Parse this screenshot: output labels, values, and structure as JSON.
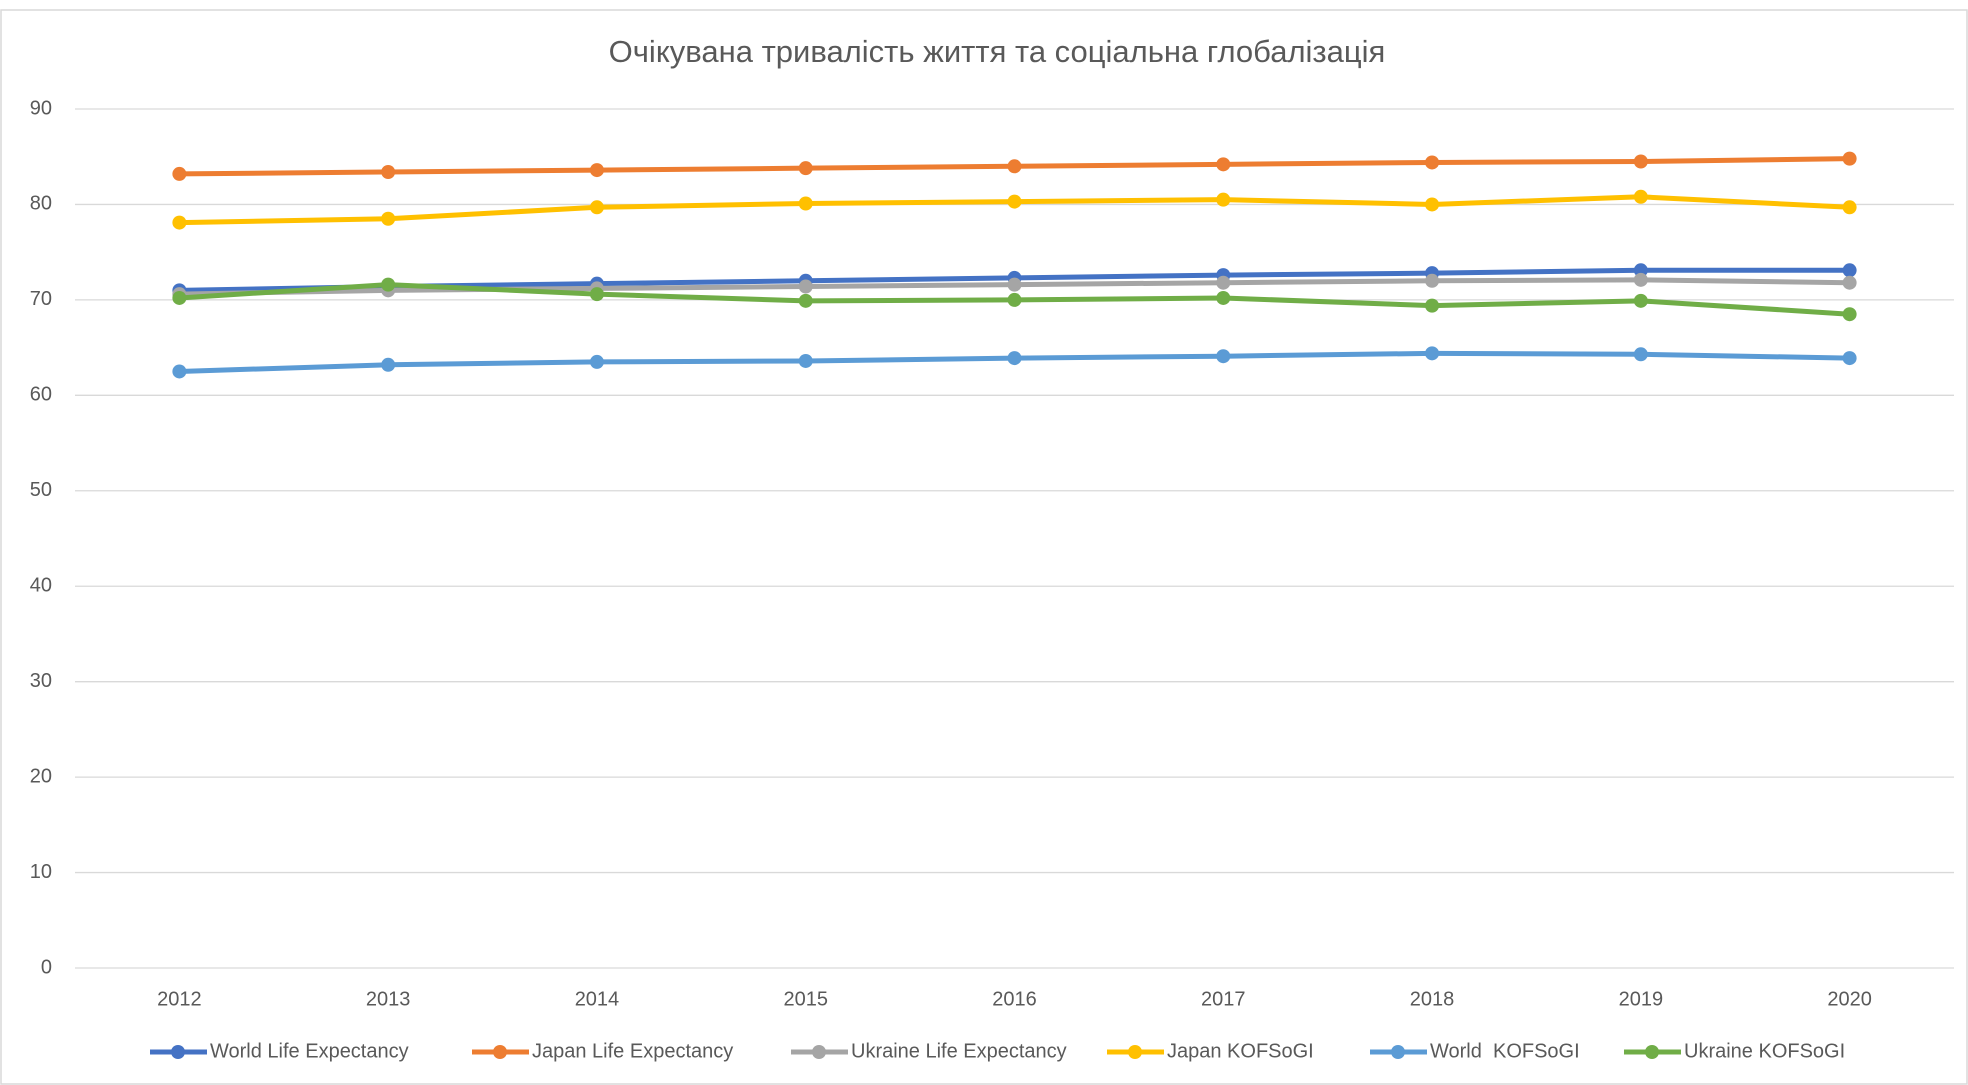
{
  "chart_data": {
    "type": "line",
    "title": "Очікувана тривалість життя та соціальна глобалізація",
    "categories": [
      "2012",
      "2013",
      "2014",
      "2015",
      "2016",
      "2017",
      "2018",
      "2019",
      "2020"
    ],
    "series": [
      {
        "name": "World Life Expectancy",
        "color": "#4472c4",
        "values": [
          71.0,
          71.4,
          71.7,
          72.0,
          72.3,
          72.6,
          72.8,
          73.1,
          73.1
        ]
      },
      {
        "name": "Japan Life Expectancy",
        "color": "#ed7d31",
        "values": [
          83.2,
          83.4,
          83.6,
          83.8,
          84.0,
          84.2,
          84.4,
          84.5,
          84.8
        ]
      },
      {
        "name": "Ukraine Life Expectancy",
        "color": "#a5a5a5",
        "values": [
          70.6,
          71.0,
          71.2,
          71.4,
          71.6,
          71.8,
          72.0,
          72.1,
          71.8
        ]
      },
      {
        "name": "Japan KOFSoGI",
        "color": "#ffc000",
        "values": [
          78.1,
          78.5,
          79.7,
          80.1,
          80.3,
          80.5,
          80.0,
          80.8,
          79.7
        ]
      },
      {
        "name": "World  KOFSoGI",
        "color": "#5b9bd5",
        "values": [
          62.5,
          63.2,
          63.5,
          63.6,
          63.9,
          64.1,
          64.4,
          64.3,
          63.9
        ]
      },
      {
        "name": "Ukraine KOFSoGI",
        "color": "#70ad47",
        "values": [
          70.2,
          71.6,
          70.6,
          69.9,
          70.0,
          70.2,
          69.4,
          69.9,
          68.5
        ]
      }
    ],
    "ylim": [
      0,
      90
    ],
    "yticks": [
      0,
      10,
      20,
      30,
      40,
      50,
      60,
      70,
      80,
      90
    ],
    "grid": true,
    "legend": "bottom"
  }
}
